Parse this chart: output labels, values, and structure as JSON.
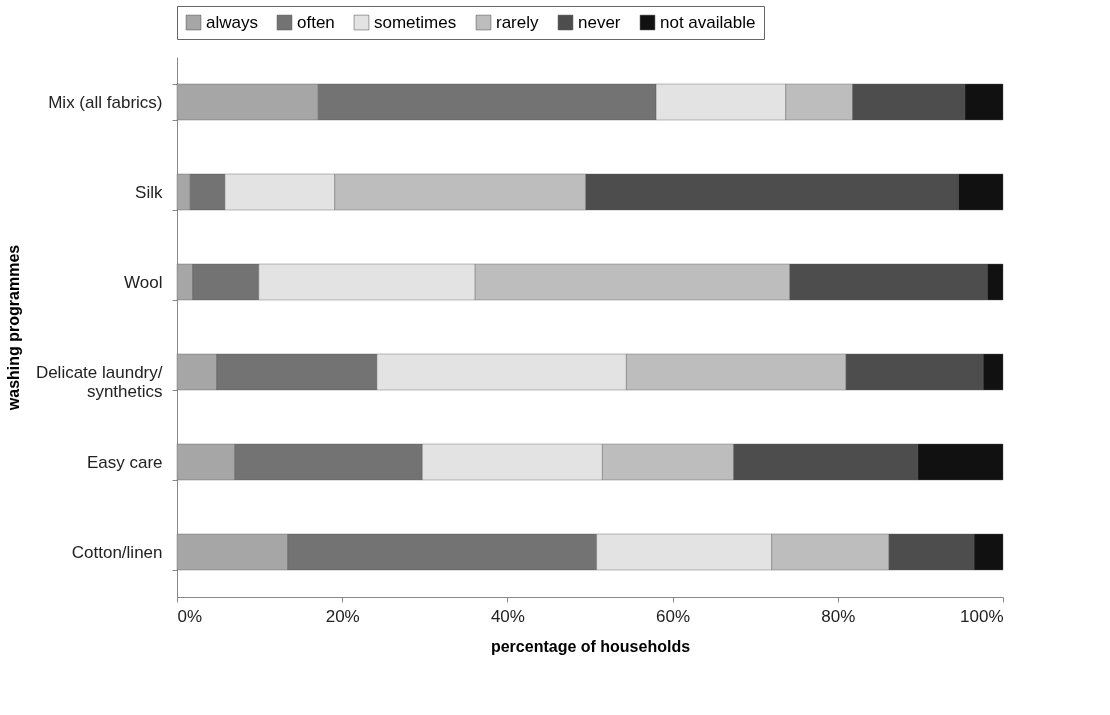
{
  "chart_data": {
    "type": "bar",
    "orientation": "horizontal",
    "stacked": true,
    "xlabel": "percentage of households",
    "ylabel": "washing programmes",
    "categories": [
      "Mix (all fabrics)",
      "Silk",
      "Wool",
      "Delicate laundry/\nsynthetics",
      "Easy care",
      "Cotton/linen"
    ],
    "series": [
      {
        "name": "always",
        "color": "#a6a6a6",
        "values": [
          17.1,
          1.6,
          1.9,
          4.8,
          7.0,
          13.4
        ]
      },
      {
        "name": "often",
        "color": "#737373",
        "values": [
          40.9,
          4.2,
          8.0,
          19.4,
          22.7,
          37.4
        ]
      },
      {
        "name": "sometimes",
        "color": "#e3e3e3",
        "values": [
          15.7,
          13.3,
          26.2,
          30.2,
          21.8,
          21.2
        ]
      },
      {
        "name": "rarely",
        "color": "#bdbdbd",
        "values": [
          8.1,
          30.4,
          38.1,
          26.6,
          15.9,
          14.2
        ]
      },
      {
        "name": "never",
        "color": "#4d4d4d",
        "values": [
          13.6,
          45.1,
          23.9,
          16.6,
          22.3,
          10.3
        ]
      },
      {
        "name": "not available",
        "color": "#111111",
        "values": [
          4.6,
          5.4,
          1.9,
          2.4,
          10.3,
          3.5
        ]
      }
    ],
    "xlim": [
      0,
      100
    ],
    "xticks": [
      {
        "value": 0,
        "label": "0%"
      },
      {
        "value": 20,
        "label": "20%"
      },
      {
        "value": 40,
        "label": "40%"
      },
      {
        "value": 60,
        "label": "60%"
      },
      {
        "value": 80,
        "label": "80%"
      },
      {
        "value": 100,
        "label": "100%"
      }
    ],
    "grid": false,
    "legend": "top"
  }
}
